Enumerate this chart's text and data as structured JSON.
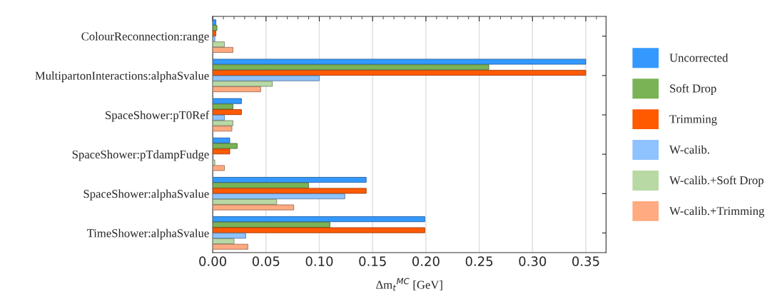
{
  "chart_data": {
    "type": "bar",
    "orientation": "horizontal",
    "xlabel": "Δm$_{t}$$^{MC}$ [GeV]",
    "categories": [
      "ColourReconnection:range",
      "MultipartonInteractions:alphaSvalue",
      "SpaceShower:pT0Ref",
      "SpaceShower:pTdampFudge",
      "SpaceShower:alphaSvalue",
      "TimeShower:alphaSvalue"
    ],
    "series": [
      {
        "name": "Uncorrected",
        "color": "#3399ff",
        "values": [
          0.003,
          0.35,
          0.027,
          0.016,
          0.144,
          0.199
        ]
      },
      {
        "name": "Soft Drop",
        "color": "#7ab356",
        "values": [
          0.004,
          0.259,
          0.019,
          0.023,
          0.09,
          0.11
        ]
      },
      {
        "name": "Trimming",
        "color": "#ff5a00",
        "values": [
          0.003,
          0.35,
          0.027,
          0.016,
          0.144,
          0.199
        ]
      },
      {
        "name": "W-calib.",
        "color": "#8fc3ff",
        "values": [
          0.002,
          0.1,
          0.011,
          0.0005,
          0.124,
          0.031
        ]
      },
      {
        "name": "W-calib.+Soft Drop",
        "color": "#b8d9a4",
        "values": [
          0.011,
          0.056,
          0.019,
          0.002,
          0.06,
          0.02
        ]
      },
      {
        "name": "W-calib.+Trimming",
        "color": "#ffaa80",
        "values": [
          0.019,
          0.045,
          0.018,
          0.011,
          0.076,
          0.033
        ]
      }
    ],
    "xlim": [
      0,
      0.369
    ],
    "xticks": [
      {
        "value": 0,
        "label": "0.00"
      },
      {
        "value": 0.05,
        "label": "0.05"
      },
      {
        "value": 0.1,
        "label": "0.10"
      },
      {
        "value": 0.15,
        "label": "0.15"
      },
      {
        "value": 0.2,
        "label": "0.20"
      },
      {
        "value": 0.25,
        "label": "0.25"
      },
      {
        "value": 0.3,
        "label": "0.30"
      },
      {
        "value": 0.35,
        "label": "0.35"
      }
    ],
    "grid": "x",
    "legend": "right"
  }
}
